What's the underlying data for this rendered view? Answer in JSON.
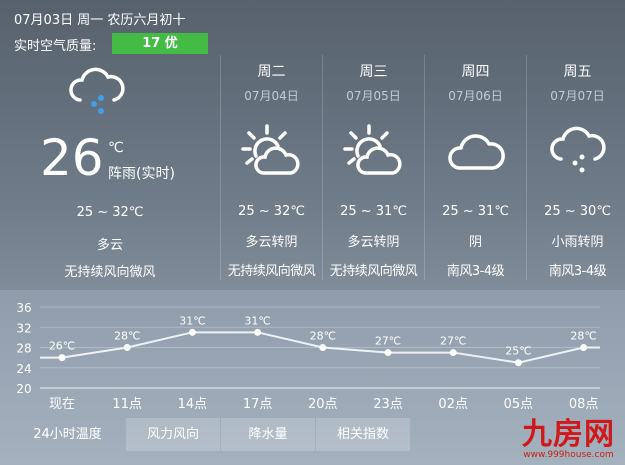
{
  "header": {
    "date": "07月03日 周一 农历六月初十",
    "air_quality_label": "实时空气质量:",
    "air_quality_value": "17 优",
    "air_quality_color": "#44bb44"
  },
  "current": {
    "icon": "rain-cloud-icon",
    "temp": "26",
    "unit": "℃",
    "desc": "阵雨(实时)",
    "range": "25 ~ 32℃",
    "weather": "多云",
    "wind": "无持续风向微风"
  },
  "forecast": [
    {
      "weekday": "周二",
      "date": "07月04日",
      "icon": "partly-cloudy-icon",
      "range": "25 ~ 32℃",
      "weather": "多云转阴",
      "wind": "无持续风向微风"
    },
    {
      "weekday": "周三",
      "date": "07月05日",
      "icon": "partly-cloudy-icon",
      "range": "25 ~ 31℃",
      "weather": "多云转阴",
      "wind": "无持续风向微风"
    },
    {
      "weekday": "周四",
      "date": "07月06日",
      "icon": "cloud-icon",
      "range": "25 ~ 31℃",
      "weather": "阴",
      "wind": "南风3-4级"
    },
    {
      "weekday": "周五",
      "date": "07月07日",
      "icon": "rain-cloud-icon",
      "range": "25 ~ 30℃",
      "weather": "小雨转阴",
      "wind": "南风3-4级"
    }
  ],
  "chart_data": {
    "type": "line",
    "categories": [
      "现在",
      "11点",
      "14点",
      "17点",
      "20点",
      "23点",
      "02点",
      "05点",
      "08点"
    ],
    "values": [
      26,
      28,
      31,
      31,
      28,
      27,
      27,
      25,
      28
    ],
    "labels": [
      "26℃",
      "28℃",
      "31℃",
      "31℃",
      "28℃",
      "27℃",
      "27℃",
      "25℃",
      "28℃"
    ],
    "yticks": [
      36,
      32,
      28,
      24,
      20
    ],
    "ylim": [
      20,
      36
    ],
    "grid": true
  },
  "tabs": [
    "24小时温度",
    "风力风向",
    "降水量",
    "相关指数"
  ],
  "logo": {
    "name": "九房网",
    "url": "www.999house.com"
  }
}
